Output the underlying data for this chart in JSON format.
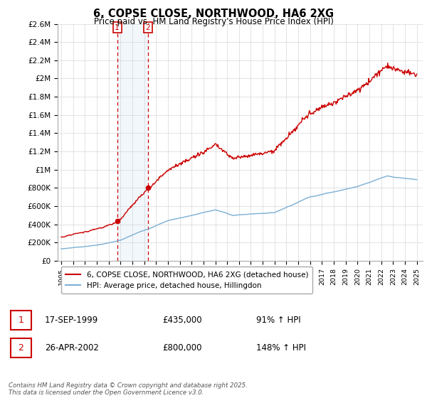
{
  "title": "6, COPSE CLOSE, NORTHWOOD, HA6 2XG",
  "subtitle": "Price paid vs. HM Land Registry's House Price Index (HPI)",
  "legend_line1": "6, COPSE CLOSE, NORTHWOOD, HA6 2XG (detached house)",
  "legend_line2": "HPI: Average price, detached house, Hillingdon",
  "red_color": "#cc0000",
  "blue_color": "#7bafd4",
  "transaction1_date": "17-SEP-1999",
  "transaction1_price": 435000,
  "transaction1_label": "91% ↑ HPI",
  "transaction1_year": 1999.72,
  "transaction2_date": "26-APR-2002",
  "transaction2_price": 800000,
  "transaction2_label": "148% ↑ HPI",
  "transaction2_year": 2002.32,
  "ylim": [
    0,
    2600000
  ],
  "xlim_start": 1995.0,
  "xlim_end": 2025.5,
  "footer": "Contains HM Land Registry data © Crown copyright and database right 2025.\nThis data is licensed under the Open Government Licence v3.0.",
  "yticks": [
    0,
    200000,
    400000,
    600000,
    800000,
    1000000,
    1200000,
    1400000,
    1600000,
    1800000,
    2000000,
    2200000,
    2400000,
    2600000
  ],
  "ytick_labels": [
    "£0",
    "£200K",
    "£400K",
    "£600K",
    "£800K",
    "£1M",
    "£1.2M",
    "£1.4M",
    "£1.6M",
    "£1.8M",
    "£2M",
    "£2.2M",
    "£2.4M",
    "£2.6M"
  ],
  "xticks": [
    1995,
    1996,
    1997,
    1998,
    1999,
    2000,
    2001,
    2002,
    2003,
    2004,
    2005,
    2006,
    2007,
    2008,
    2009,
    2010,
    2011,
    2012,
    2013,
    2014,
    2015,
    2016,
    2017,
    2018,
    2019,
    2020,
    2021,
    2022,
    2023,
    2024,
    2025
  ]
}
